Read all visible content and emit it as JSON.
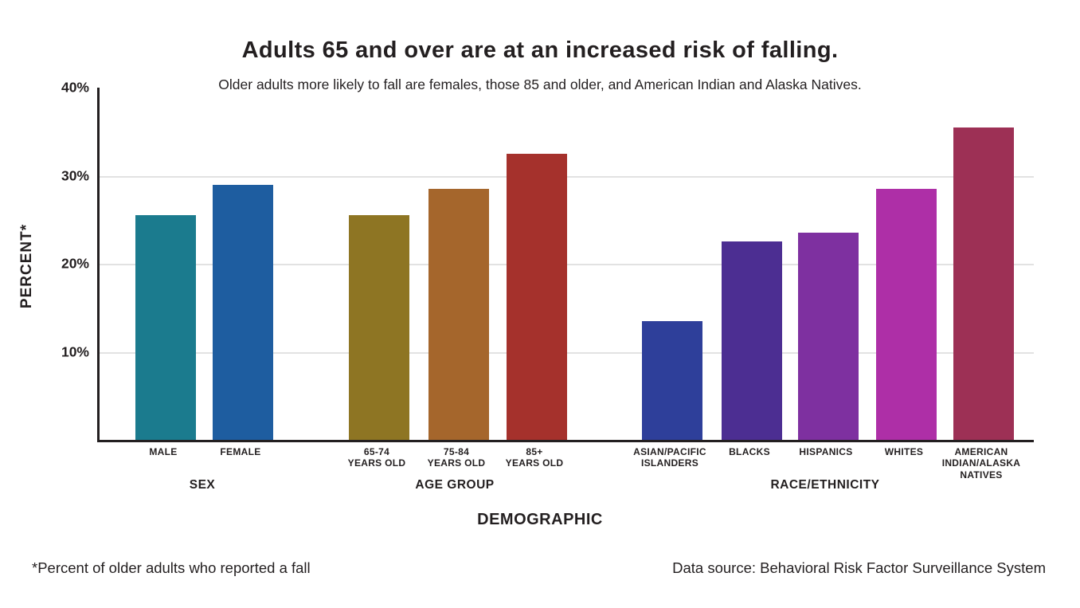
{
  "header": {
    "title": "Adults 65 and over are at an increased risk of falling.",
    "subtitle": "Older adults more likely to fall are females, those 85 and older, and American Indian and Alaska Natives."
  },
  "chart_data": {
    "type": "bar",
    "title": "Adults 65 and over are at an increased risk of falling.",
    "subtitle": "Older adults more likely to fall are females, those 85 and older, and American Indian and Alaska Natives.",
    "xlabel": "DEMOGRAPHIC",
    "ylabel": "PERCENT*",
    "ylim": [
      0,
      40
    ],
    "grid": "horizontal gridlines at 10%, 20%, 30%",
    "legend": "none",
    "yticks": [
      {
        "value": 40,
        "label": "40%"
      },
      {
        "value": 30,
        "label": "30%"
      },
      {
        "value": 20,
        "label": "20%"
      },
      {
        "value": 10,
        "label": "10%"
      }
    ],
    "groups": [
      {
        "label": "SEX",
        "bars": [
          {
            "label": "MALE",
            "label_lines": [
              "MALE"
            ],
            "value": 25.5,
            "color": "#1b7b8e"
          },
          {
            "label": "FEMALE",
            "label_lines": [
              "FEMALE"
            ],
            "value": 29.0,
            "color": "#1e5da0"
          }
        ]
      },
      {
        "label": "AGE GROUP",
        "bars": [
          {
            "label": "65-74 YEARS OLD",
            "label_lines": [
              "65-74",
              "YEARS OLD"
            ],
            "value": 25.5,
            "color": "#8e7523"
          },
          {
            "label": "75-84 YEARS OLD",
            "label_lines": [
              "75-84",
              "YEARS OLD"
            ],
            "value": 28.5,
            "color": "#a5662c"
          },
          {
            "label": "85+ YEARS OLD",
            "label_lines": [
              "85+",
              "YEARS OLD"
            ],
            "value": 32.5,
            "color": "#a5312c"
          }
        ]
      },
      {
        "label": "RACE/ETHNICITY",
        "bars": [
          {
            "label": "ASIAN/PACIFIC ISLANDERS",
            "label_lines": [
              "ASIAN/PACIFIC",
              "ISLANDERS"
            ],
            "value": 13.5,
            "color": "#2e3f9a"
          },
          {
            "label": "BLACKS",
            "label_lines": [
              "BLACKS"
            ],
            "value": 22.5,
            "color": "#4c2e92"
          },
          {
            "label": "HISPANICS",
            "label_lines": [
              "HISPANICS"
            ],
            "value": 23.5,
            "color": "#7e30a0"
          },
          {
            "label": "WHITES",
            "label_lines": [
              "WHITES"
            ],
            "value": 28.5,
            "color": "#ae2fa7"
          },
          {
            "label": "AMERICAN INDIAN/ALASKA NATIVES",
            "label_lines": [
              "AMERICAN",
              "INDIAN/ALASKA",
              "NATIVES"
            ],
            "value": 35.5,
            "color": "#9d3055"
          }
        ]
      }
    ]
  },
  "footer": {
    "note": "*Percent of older adults who reported a fall",
    "source": "Data source: Behavioral Risk Factor Surveillance System"
  }
}
